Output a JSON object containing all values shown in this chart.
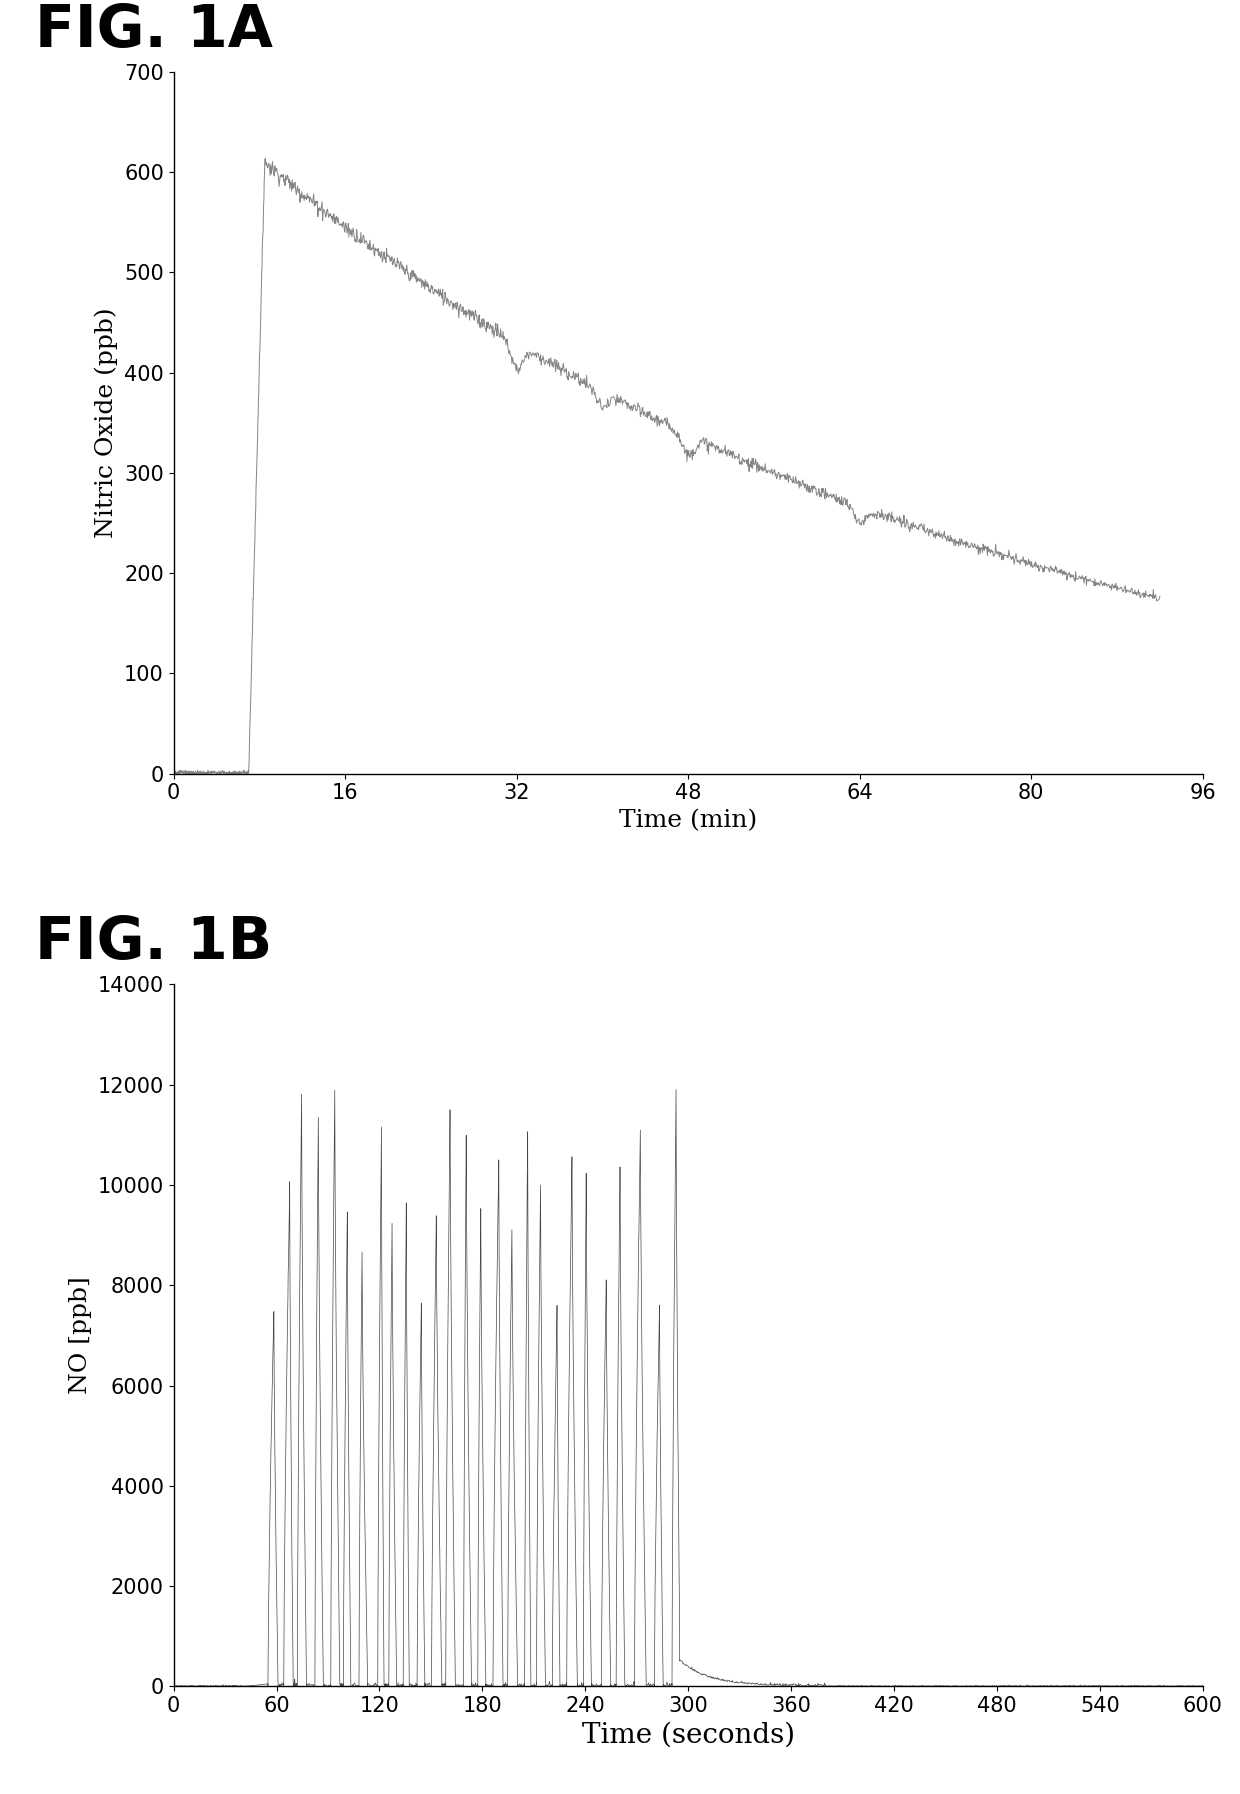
{
  "fig1a": {
    "title": "FIG. 1A",
    "xlabel": "Time (min)",
    "ylabel": "Nitric Oxide (ppb)",
    "xlim": [
      0,
      96
    ],
    "ylim": [
      0,
      700
    ],
    "xticks": [
      0,
      16,
      32,
      48,
      64,
      80,
      96
    ],
    "yticks": [
      0,
      100,
      200,
      300,
      400,
      500,
      600,
      700
    ],
    "line_color": "#777777",
    "baseline_end": 7.0,
    "peak_x": 8.5,
    "peak_y": 610,
    "end_x": 92,
    "end_y": 175
  },
  "fig1b": {
    "title": "FIG. 1B",
    "xlabel": "Time (seconds)",
    "ylabel": "NO [ppb]",
    "xlim": [
      0,
      600
    ],
    "ylim": [
      0,
      14000
    ],
    "xticks": [
      0,
      60,
      120,
      180,
      240,
      300,
      360,
      420,
      480,
      540,
      600
    ],
    "yticks": [
      0,
      2000,
      4000,
      6000,
      8000,
      10000,
      12000,
      14000
    ],
    "line_color": "#333333",
    "spike_start": 55,
    "spike_end": 295,
    "decay_start": 295,
    "max_spike": 12000
  },
  "background_color": "#ffffff",
  "fig_label_fontsize": 42,
  "axis_label_fontsize": 18,
  "tick_fontsize": 15
}
